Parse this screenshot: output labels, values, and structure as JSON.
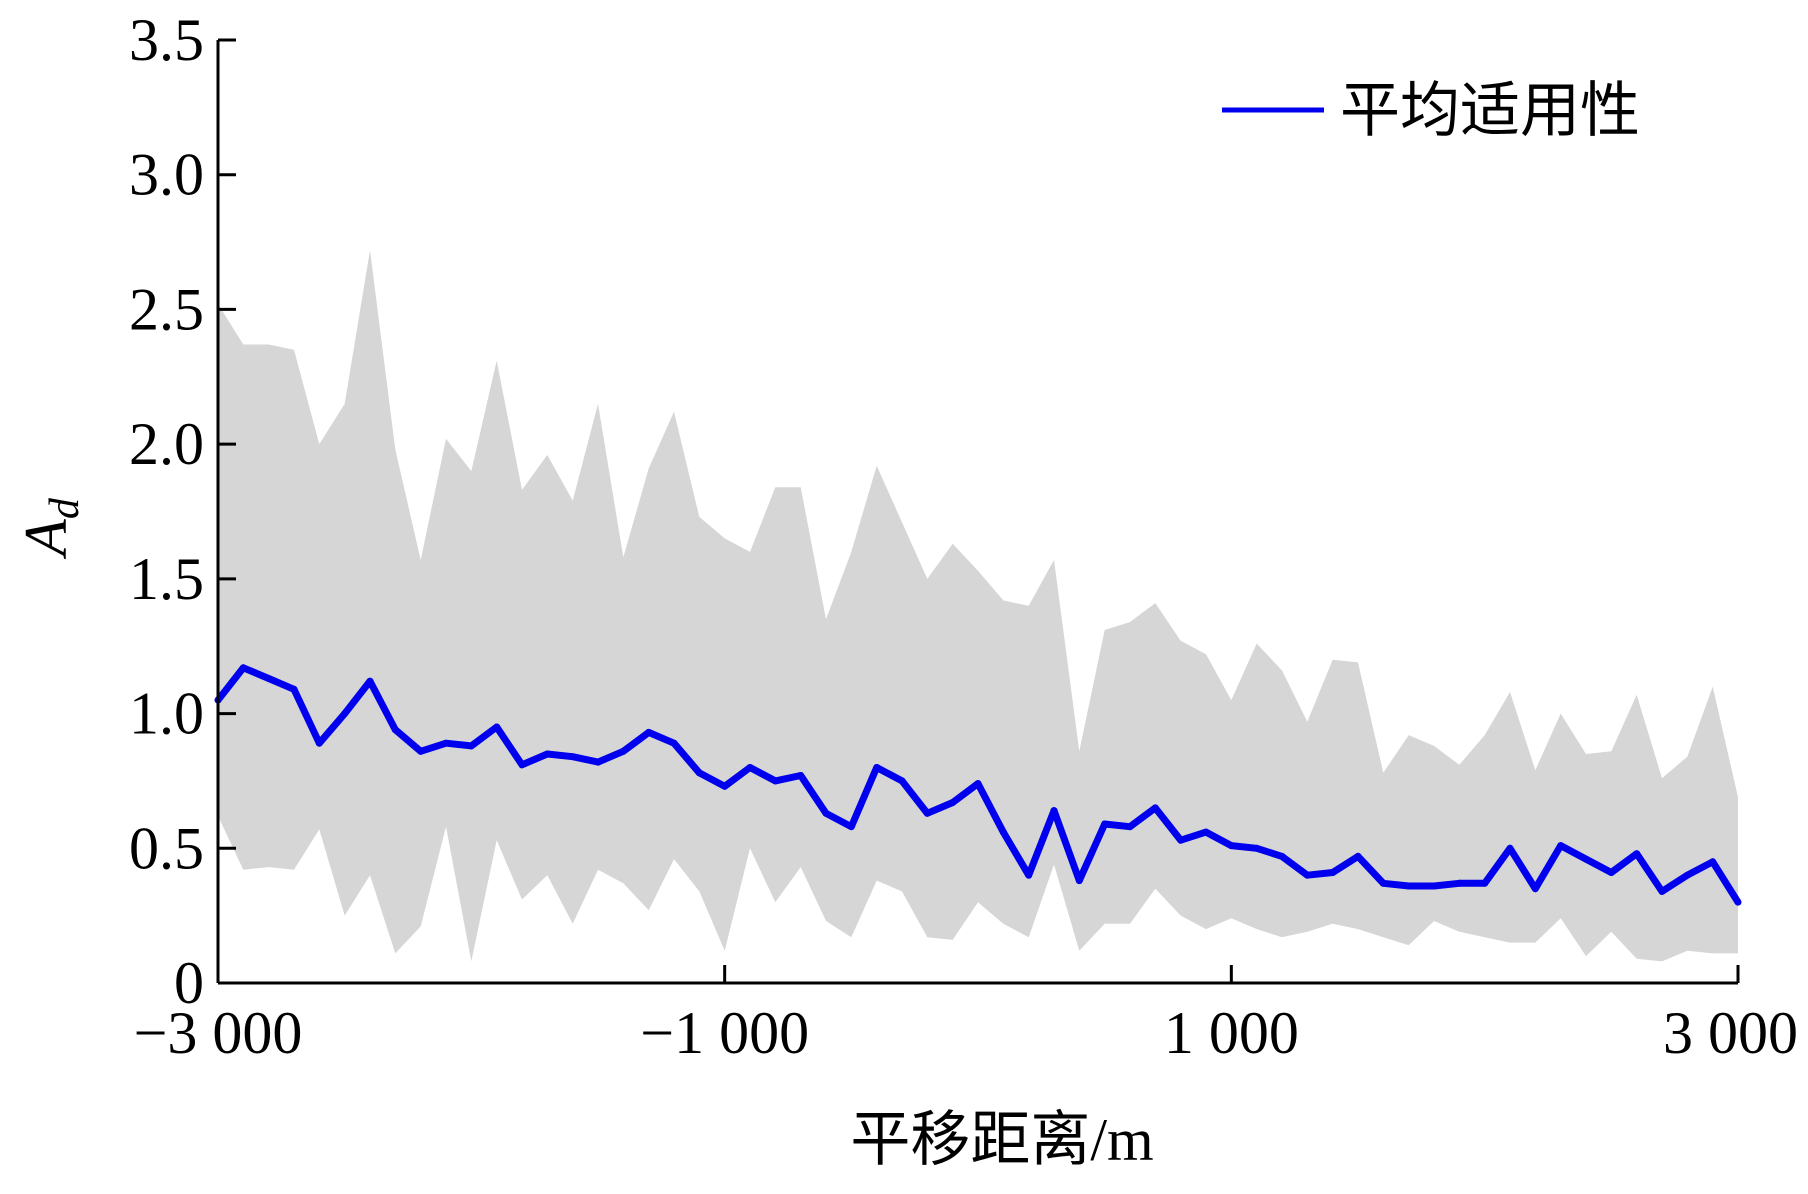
{
  "chart_data": {
    "type": "line",
    "title": "",
    "xlabel": "平移距离/m",
    "ylabel": "A",
    "ylabel_subscript": "d",
    "xlim": [
      -3000,
      3000
    ],
    "ylim": [
      0,
      3.5
    ],
    "x_ticks": [
      -3000,
      -1000,
      1000,
      3000
    ],
    "x_tick_labels": [
      "−3 000",
      "−1 000",
      "1 000",
      "3 000"
    ],
    "y_ticks": [
      0,
      0.5,
      1.0,
      1.5,
      2.0,
      2.5,
      3.0,
      3.5
    ],
    "y_tick_labels": [
      "0",
      "0.5",
      "1.0",
      "1.5",
      "2.0",
      "2.5",
      "3.0",
      "3.5"
    ],
    "grid": false,
    "legend_position": "top-right",
    "colors": {
      "line": "#0000ee",
      "band": "#d6d6d6",
      "axis": "#000000"
    },
    "series": [
      {
        "name": "平均适用性",
        "x": [
          -3000,
          -2900,
          -2800,
          -2700,
          -2600,
          -2500,
          -2400,
          -2300,
          -2200,
          -2100,
          -2000,
          -1900,
          -1800,
          -1700,
          -1600,
          -1500,
          -1400,
          -1300,
          -1200,
          -1100,
          -1000,
          -900,
          -800,
          -700,
          -600,
          -500,
          -400,
          -300,
          -200,
          -100,
          0,
          100,
          200,
          300,
          400,
          500,
          600,
          700,
          800,
          900,
          1000,
          1100,
          1200,
          1300,
          1400,
          1500,
          1600,
          1700,
          1800,
          1900,
          2000,
          2100,
          2200,
          2300,
          2400,
          2500,
          2600,
          2700,
          2800,
          2900,
          3000
        ],
        "values": [
          1.05,
          1.17,
          1.13,
          1.09,
          0.89,
          1.0,
          1.12,
          0.94,
          0.86,
          0.89,
          0.88,
          0.95,
          0.81,
          0.85,
          0.84,
          0.82,
          0.86,
          0.93,
          0.89,
          0.78,
          0.73,
          0.8,
          0.75,
          0.77,
          0.63,
          0.58,
          0.8,
          0.75,
          0.63,
          0.67,
          0.74,
          0.56,
          0.4,
          0.64,
          0.38,
          0.59,
          0.58,
          0.65,
          0.53,
          0.56,
          0.51,
          0.5,
          0.47,
          0.4,
          0.41,
          0.47,
          0.37,
          0.36,
          0.36,
          0.37,
          0.37,
          0.5,
          0.35,
          0.51,
          0.46,
          0.41,
          0.48,
          0.34,
          0.4,
          0.45,
          0.3
        ],
        "upper": [
          2.52,
          2.37,
          2.37,
          2.35,
          2.0,
          2.15,
          2.72,
          1.98,
          1.57,
          2.02,
          1.9,
          2.31,
          1.83,
          1.96,
          1.79,
          2.15,
          1.58,
          1.91,
          2.12,
          1.73,
          1.65,
          1.6,
          1.84,
          1.84,
          1.35,
          1.6,
          1.92,
          1.71,
          1.5,
          1.63,
          1.53,
          1.42,
          1.4,
          1.57,
          0.86,
          1.31,
          1.34,
          1.41,
          1.27,
          1.22,
          1.05,
          1.26,
          1.16,
          0.97,
          1.2,
          1.19,
          0.78,
          0.92,
          0.88,
          0.81,
          0.92,
          1.08,
          0.79,
          1.0,
          0.85,
          0.86,
          1.07,
          0.76,
          0.84,
          1.1,
          0.69
        ],
        "lower": [
          0.62,
          0.42,
          0.43,
          0.42,
          0.57,
          0.25,
          0.4,
          0.11,
          0.21,
          0.58,
          0.08,
          0.53,
          0.31,
          0.4,
          0.22,
          0.42,
          0.37,
          0.27,
          0.46,
          0.34,
          0.12,
          0.5,
          0.3,
          0.43,
          0.23,
          0.17,
          0.38,
          0.34,
          0.17,
          0.16,
          0.3,
          0.22,
          0.17,
          0.44,
          0.12,
          0.22,
          0.22,
          0.35,
          0.25,
          0.2,
          0.24,
          0.2,
          0.17,
          0.19,
          0.22,
          0.2,
          0.17,
          0.14,
          0.23,
          0.19,
          0.17,
          0.15,
          0.15,
          0.24,
          0.1,
          0.19,
          0.09,
          0.08,
          0.12,
          0.11,
          0.11
        ]
      }
    ]
  }
}
